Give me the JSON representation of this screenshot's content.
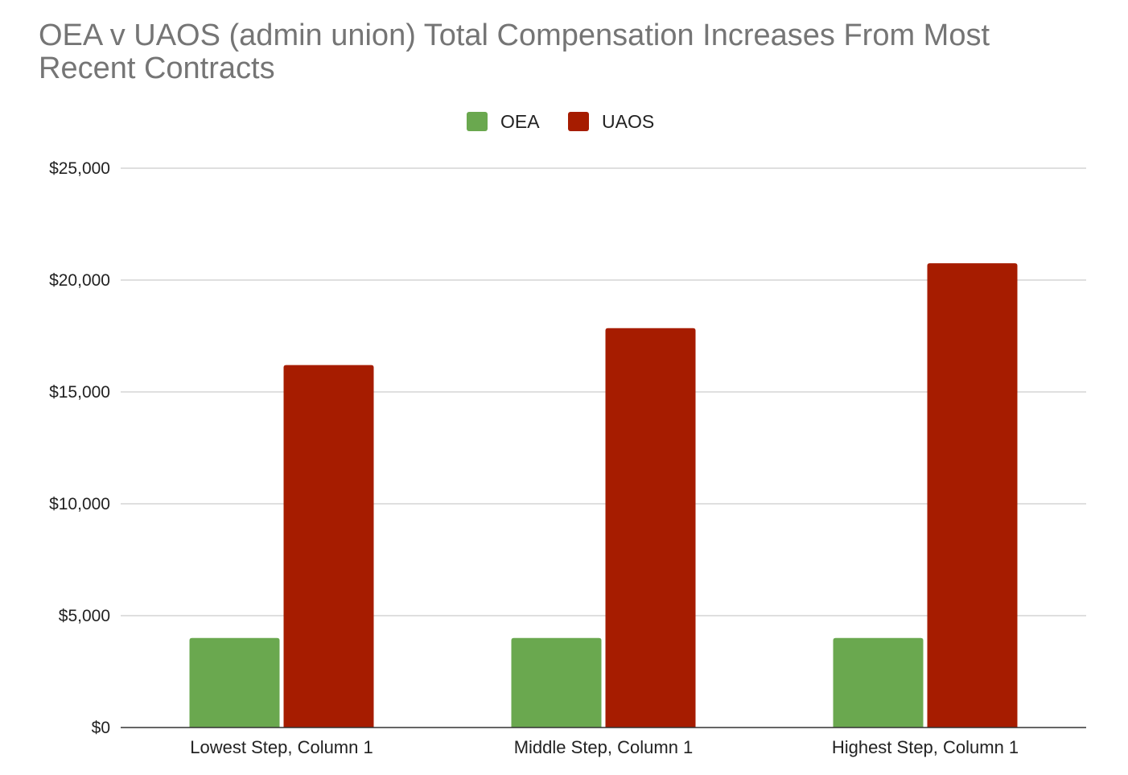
{
  "chart_data": {
    "type": "bar",
    "title": "OEA v UAOS (admin union) Total Compensation Increases From Most Recent Contracts",
    "title_lines": [
      "OEA v UAOS (admin union) Total Compensation Increases From Most",
      "Recent Contracts"
    ],
    "categories": [
      "Lowest Step, Column 1",
      "Middle Step, Column 1",
      "Highest Step, Column 1"
    ],
    "series": [
      {
        "name": "OEA",
        "color": "#6aa84f",
        "values": [
          4000,
          4000,
          4000
        ]
      },
      {
        "name": "UAOS",
        "color": "#a61c00",
        "values": [
          16200,
          17850,
          20750
        ]
      }
    ],
    "y_ticks": [
      0,
      5000,
      10000,
      15000,
      20000,
      25000
    ],
    "y_tick_labels": [
      "$0",
      "$5,000",
      "$10,000",
      "$15,000",
      "$20,000",
      "$25,000"
    ],
    "ylim": [
      0,
      25000
    ],
    "grid": true,
    "legend_position": "top-center",
    "xlabel": "",
    "ylabel": ""
  }
}
